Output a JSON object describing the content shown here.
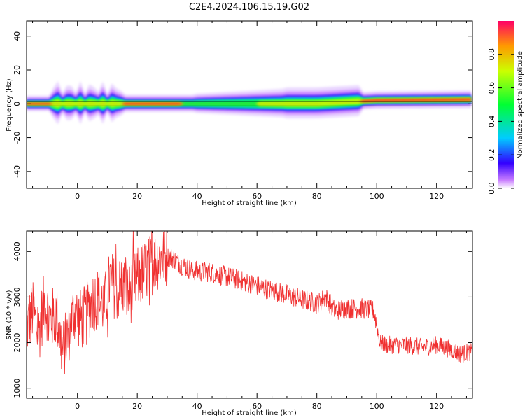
{
  "figure_title": "C2E4.2024.106.15.19.G02",
  "chart_data": [
    {
      "type": "heatmap",
      "xlabel": "Height of straight line (km)",
      "ylabel": "Frequency (Hz)",
      "xlim": [
        -17,
        132
      ],
      "ylim": [
        -50,
        49
      ],
      "x_ticks": [
        0,
        20,
        40,
        60,
        80,
        100,
        120
      ],
      "y_ticks": [
        -40,
        -20,
        0,
        20,
        40
      ],
      "colorbar": {
        "label": "Normalized spectral amplitude",
        "range": [
          0,
          1
        ],
        "ticks": [
          "0.0",
          "0.2",
          "0.4",
          "0.6",
          "0.8"
        ],
        "colormap": "gist_rainbow_r",
        "colors": [
          "#ffffff",
          "#c87cff",
          "#3300ff",
          "#00ccff",
          "#00ff33",
          "#ccff00",
          "#ff9900",
          "#ff0033"
        ]
      },
      "signal": {
        "center_freq_hz": [
          [
            -17,
            0
          ],
          [
            20,
            0
          ],
          [
            60,
            0
          ],
          [
            80,
            0
          ],
          [
            100,
            2
          ],
          [
            132,
            2.5
          ]
        ],
        "note_values": "approximate dominant frequency band near 0 Hz"
      }
    },
    {
      "type": "line",
      "xlabel": "Height of straight line (km)",
      "ylabel": "SNR (10 * v/v)",
      "xlim": [
        -17,
        132
      ],
      "ylim": [
        780,
        4450
      ],
      "x_ticks": [
        0,
        20,
        40,
        60,
        80,
        100,
        120
      ],
      "y_ticks": [
        1000,
        2000,
        3000,
        4000
      ],
      "series": [
        {
          "color": "#f03030",
          "envelope": {
            "x": [
              -17,
              -15,
              -13,
              -11,
              -9,
              -7,
              -5,
              -3,
              -1,
              1,
              3,
              5,
              7,
              9,
              11,
              13,
              15,
              17,
              20,
              23,
              26,
              29,
              32,
              35,
              38,
              41,
              44,
              47,
              50,
              55,
              60,
              65,
              70,
              75,
              78,
              80,
              83,
              86,
              89,
              92,
              95,
              99,
              100,
              101,
              103,
              106,
              110,
              115,
              120,
              125,
              128,
              132
            ],
            "y": [
              2300,
              2700,
              2200,
              2900,
              2500,
              2600,
              1800,
              2200,
              2700,
              2500,
              2600,
              2900,
              3000,
              2800,
              3400,
              3100,
              3300,
              3000,
              3400,
              3600,
              3800,
              3900,
              3850,
              3700,
              3600,
              3550,
              3550,
              3500,
              3450,
              3350,
              3250,
              3150,
              3050,
              2950,
              2900,
              2850,
              3000,
              2700,
              2750,
              2750,
              2750,
              2700,
              2400,
              2000,
              1950,
              1950,
              1950,
              1900,
              1950,
              1850,
              1750,
              1800
            ]
          }
        }
      ]
    }
  ]
}
